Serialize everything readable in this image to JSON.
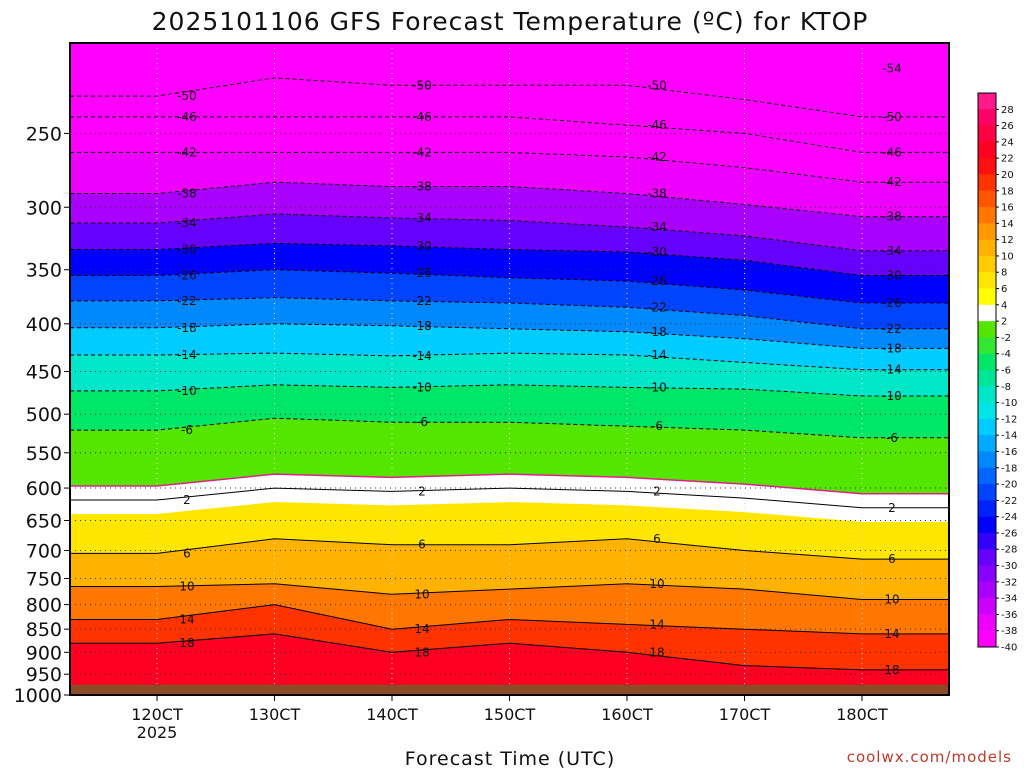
{
  "chart_data": {
    "type": "heatmap",
    "title": "2025101106 GFS Forecast Temperature (ºC) for KTOP",
    "xlabel": "Forecast Time (UTC)",
    "ylabel": "",
    "x_ticks": [
      "120CT",
      "130CT",
      "140CT",
      "150CT",
      "160CT",
      "170CT",
      "180CT"
    ],
    "x_year_label": "2025",
    "y_ticks": [
      250,
      300,
      350,
      400,
      450,
      500,
      550,
      600,
      650,
      700,
      750,
      800,
      850,
      900,
      950,
      1000
    ],
    "pressure_range": [
      200,
      1000
    ],
    "y_scale": "log",
    "grid": true,
    "colorbar": {
      "labels": [
        28,
        26,
        24,
        22,
        20,
        18,
        16,
        14,
        12,
        10,
        8,
        6,
        4,
        2,
        -2,
        -4,
        -6,
        -8,
        -10,
        -12,
        -14,
        -16,
        -18,
        -20,
        -22,
        -24,
        -26,
        -28,
        -30,
        -32,
        -34,
        -36,
        -38,
        -40
      ],
      "colors": [
        "#ff1a8c",
        "#ff0066",
        "#ff0040",
        "#ff0022",
        "#ff0f0f",
        "#ff3300",
        "#ff5500",
        "#ff7700",
        "#ff9900",
        "#ffb300",
        "#ffcc00",
        "#ffe600",
        "#ffff00",
        "#ffffff",
        "#55e600",
        "#33e633",
        "#00e666",
        "#00e699",
        "#00e6c8",
        "#00e6e6",
        "#00ccff",
        "#00aaff",
        "#0088ff",
        "#0066ff",
        "#0044ff",
        "#0022ff",
        "#0000ff",
        "#3300ff",
        "#6600ff",
        "#8800ff",
        "#aa00ff",
        "#cc00ff",
        "#ee00ff",
        "#ff00ff"
      ]
    },
    "isotherms": [
      {
        "value": -54,
        "pressure": [
          null,
          null,
          null,
          null,
          null,
          null,
          213,
          null
        ]
      },
      {
        "value": -50,
        "pressure": [
          228,
          218,
          222,
          222,
          222,
          230,
          240,
          null
        ]
      },
      {
        "value": -46,
        "pressure": [
          240,
          240,
          240,
          240,
          245,
          250,
          262,
          null
        ]
      },
      {
        "value": -42,
        "pressure": [
          262,
          262,
          262,
          262,
          265,
          272,
          282,
          null
        ]
      },
      {
        "value": -38,
        "pressure": [
          290,
          282,
          285,
          285,
          290,
          298,
          307,
          null
        ]
      },
      {
        "value": -34,
        "pressure": [
          312,
          305,
          308,
          310,
          315,
          322,
          334,
          null
        ]
      },
      {
        "value": -30,
        "pressure": [
          333,
          328,
          330,
          333,
          335,
          342,
          355,
          null
        ]
      },
      {
        "value": -26,
        "pressure": [
          355,
          350,
          353,
          357,
          360,
          368,
          380,
          null
        ]
      },
      {
        "value": -22,
        "pressure": [
          378,
          375,
          378,
          380,
          384,
          392,
          405,
          null
        ]
      },
      {
        "value": -18,
        "pressure": [
          404,
          400,
          402,
          405,
          408,
          415,
          425,
          null
        ]
      },
      {
        "value": -14,
        "pressure": [
          432,
          430,
          433,
          430,
          432,
          440,
          448,
          null
        ]
      },
      {
        "value": -10,
        "pressure": [
          472,
          465,
          468,
          465,
          468,
          470,
          478,
          null
        ]
      },
      {
        "value": -6,
        "pressure": [
          520,
          505,
          510,
          510,
          515,
          520,
          530,
          null
        ]
      },
      {
        "value": 2,
        "pressure": [
          618,
          600,
          605,
          600,
          605,
          615,
          630,
          null
        ]
      },
      {
        "value": 6,
        "pressure": [
          705,
          680,
          690,
          690,
          680,
          700,
          715,
          null
        ]
      },
      {
        "value": 10,
        "pressure": [
          765,
          760,
          780,
          770,
          760,
          770,
          790,
          null
        ]
      },
      {
        "value": 14,
        "pressure": [
          830,
          800,
          850,
          830,
          840,
          850,
          860,
          null
        ]
      },
      {
        "value": 18,
        "pressure": [
          880,
          860,
          900,
          880,
          900,
          930,
          940,
          null
        ]
      }
    ],
    "surface_pressure": 975
  },
  "credit": "coolwx.com/models",
  "colors": {
    "ground": "#8b4a28",
    "frame": "#000000",
    "freezing_line": "#e0208a"
  }
}
